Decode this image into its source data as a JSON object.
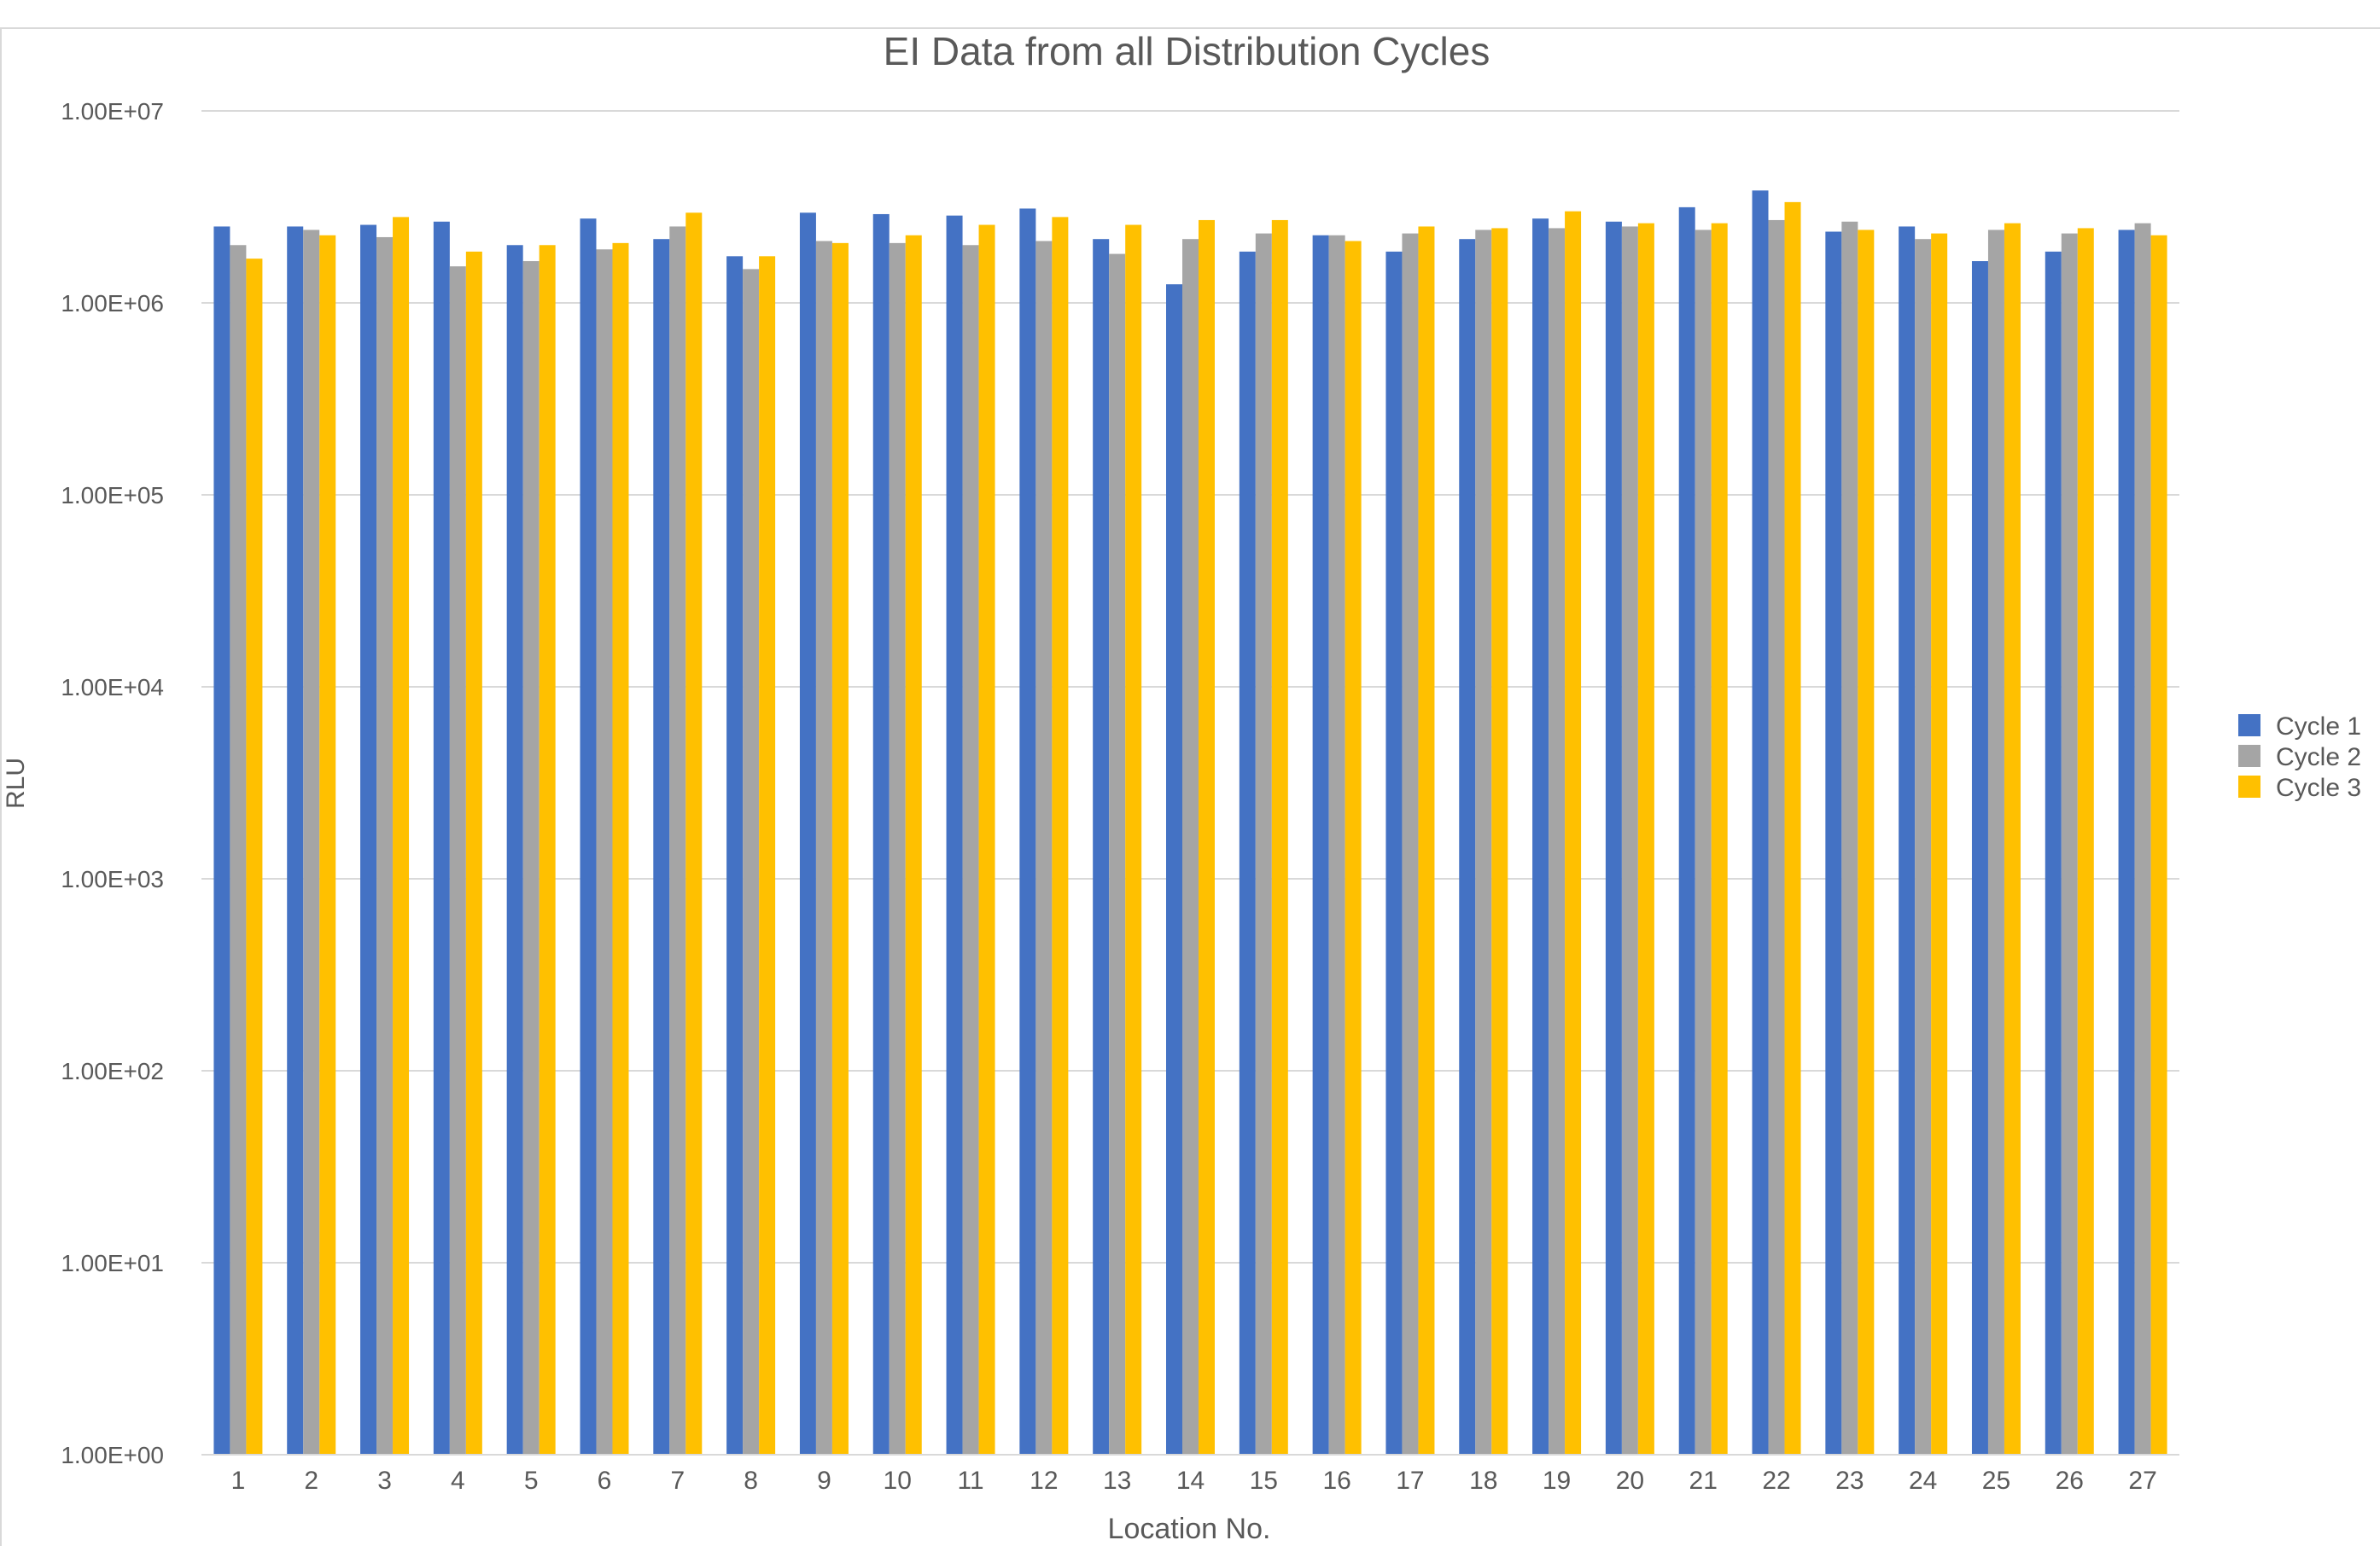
{
  "chart_data": {
    "type": "bar",
    "title": "EI Data from all Distribution Cycles",
    "xlabel": "Location No.",
    "ylabel": "RLU",
    "yscale": "log",
    "ylim": [
      1,
      10000000
    ],
    "y_ticks": [
      1,
      10,
      100,
      1000,
      10000,
      100000,
      1000000,
      10000000
    ],
    "y_tick_labels": [
      "1.00E+00",
      "1.00E+01",
      "1.00E+02",
      "1.00E+03",
      "1.00E+04",
      "1.00E+05",
      "1.00E+06",
      "1.00E+07"
    ],
    "grid": "horizontal",
    "legend_position": "right",
    "categories": [
      "1",
      "2",
      "3",
      "4",
      "5",
      "6",
      "7",
      "8",
      "9",
      "10",
      "11",
      "12",
      "13",
      "14",
      "15",
      "16",
      "17",
      "18",
      "19",
      "20",
      "21",
      "22",
      "23",
      "24",
      "25",
      "26",
      "27"
    ],
    "series": [
      {
        "name": "Cycle 1",
        "color": "#4472C4",
        "values": [
          2500000,
          2500000,
          2550000,
          2650000,
          2000000,
          2750000,
          2150000,
          1750000,
          2950000,
          2900000,
          2850000,
          3100000,
          2150000,
          1250000,
          1850000,
          2250000,
          1850000,
          2150000,
          2750000,
          2650000,
          3150000,
          3850000,
          2350000,
          2500000,
          1650000,
          1850000,
          2400000
        ]
      },
      {
        "name": "Cycle 2",
        "color": "#A5A5A5",
        "values": [
          2000000,
          2400000,
          2200000,
          1550000,
          1650000,
          1900000,
          2500000,
          1500000,
          2100000,
          2050000,
          2000000,
          2100000,
          1800000,
          2150000,
          2300000,
          2250000,
          2300000,
          2400000,
          2450000,
          2500000,
          2400000,
          2700000,
          2650000,
          2150000,
          2400000,
          2300000,
          2600000
        ]
      },
      {
        "name": "Cycle 3",
        "color": "#FFC000",
        "values": [
          1700000,
          2250000,
          2800000,
          1850000,
          2000000,
          2050000,
          2950000,
          1750000,
          2050000,
          2250000,
          2550000,
          2800000,
          2550000,
          2700000,
          2700000,
          2100000,
          2500000,
          2450000,
          3000000,
          2600000,
          2600000,
          3350000,
          2400000,
          2300000,
          2600000,
          2450000,
          2250000
        ]
      }
    ]
  }
}
